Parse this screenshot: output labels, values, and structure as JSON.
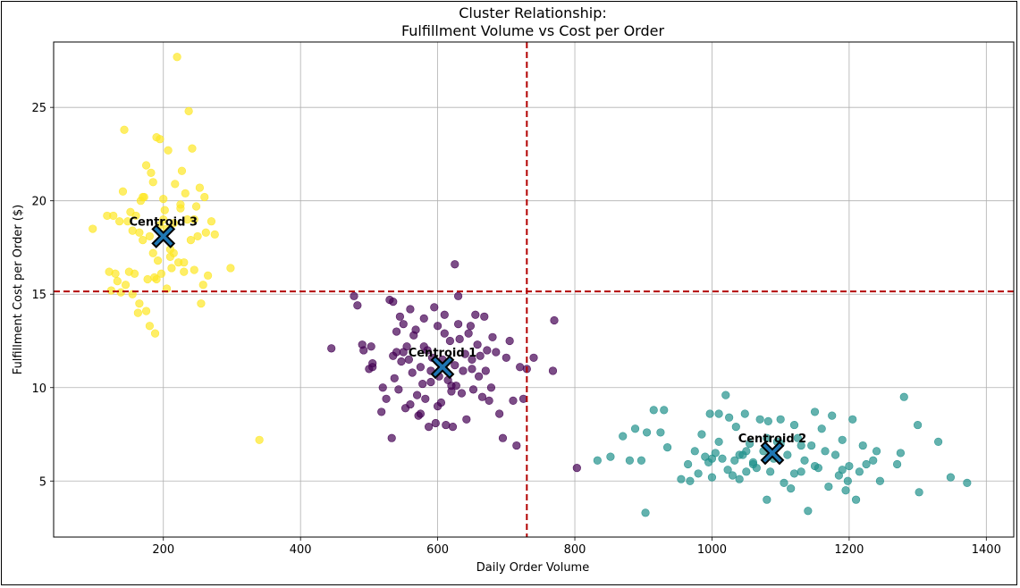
{
  "chart_data": {
    "type": "scatter",
    "title": "Cluster Relationship:",
    "subtitle": "Fulfillment Volume vs Cost per Order",
    "xlabel": "Daily Order Volume",
    "ylabel": "Fulfillment Cost per Order ($)",
    "xlim": [
      40,
      1440
    ],
    "ylim": [
      2,
      28.5
    ],
    "xticks": [
      200,
      400,
      600,
      800,
      1000,
      1200,
      1400
    ],
    "yticks": [
      5,
      10,
      15,
      20,
      25
    ],
    "grid": true,
    "reference_lines": [
      {
        "orientation": "vertical",
        "value": 730,
        "color": "#b30000",
        "style": "dashed"
      },
      {
        "orientation": "horizontal",
        "value": 15.15,
        "color": "#b30000",
        "style": "dashed"
      }
    ],
    "centroids": [
      {
        "label": "Centroid 1",
        "x": 607,
        "y": 11.1
      },
      {
        "label": "Centroid 2",
        "x": 1088,
        "y": 6.5
      },
      {
        "label": "Centroid 3",
        "x": 200,
        "y": 18.1
      }
    ],
    "centroid_color": "#1f77b4",
    "series": [
      {
        "cluster": 1,
        "color": "#440154",
        "x": [
          445,
          478,
          483,
          490,
          492,
          500,
          503,
          505,
          518,
          520,
          525,
          530,
          533,
          535,
          537,
          540,
          543,
          547,
          550,
          553,
          555,
          558,
          560,
          563,
          565,
          568,
          570,
          572,
          575,
          578,
          580,
          582,
          585,
          587,
          590,
          592,
          595,
          597,
          600,
          602,
          605,
          607,
          610,
          612,
          615,
          618,
          620,
          622,
          625,
          627,
          630,
          632,
          635,
          637,
          640,
          642,
          645,
          648,
          650,
          652,
          655,
          658,
          660,
          662,
          665,
          668,
          670,
          672,
          675,
          678,
          680,
          685,
          690,
          695,
          700,
          705,
          710,
          715,
          720,
          725,
          730,
          740,
          768,
          770,
          803,
          625,
          560,
          540,
          580,
          630,
          590,
          545,
          600,
          575,
          650,
          610,
          620,
          550,
          535,
          505
        ],
        "y": [
          12.1,
          14.9,
          14.4,
          12.3,
          12.0,
          11.0,
          12.2,
          11.3,
          8.7,
          10.0,
          9.4,
          14.7,
          7.3,
          11.7,
          10.5,
          11.9,
          9.9,
          11.4,
          13.4,
          8.9,
          12.2,
          11.5,
          9.1,
          10.8,
          12.8,
          13.1,
          9.6,
          8.5,
          11.1,
          10.2,
          13.7,
          9.4,
          12.0,
          7.9,
          10.9,
          11.6,
          14.3,
          8.1,
          13.3,
          10.6,
          9.2,
          11.5,
          13.9,
          8.0,
          10.4,
          12.5,
          9.8,
          7.9,
          11.2,
          10.1,
          14.9,
          12.6,
          9.7,
          10.9,
          11.8,
          8.3,
          12.9,
          13.3,
          11.0,
          9.9,
          13.9,
          12.3,
          10.6,
          11.7,
          9.5,
          13.8,
          10.9,
          12.0,
          9.3,
          10.0,
          12.7,
          11.9,
          8.6,
          7.3,
          11.6,
          12.5,
          9.3,
          6.9,
          11.1,
          9.4,
          11.0,
          11.6,
          10.9,
          13.6,
          5.7,
          16.6,
          14.2,
          13.0,
          12.2,
          13.4,
          10.3,
          13.8,
          9.0,
          8.6,
          11.5,
          12.9,
          10.1,
          11.9,
          14.6,
          11.1
        ]
      },
      {
        "cluster": 2,
        "color": "#21918c",
        "x": [
          833,
          852,
          870,
          880,
          888,
          897,
          903,
          905,
          915,
          925,
          930,
          935,
          955,
          965,
          968,
          975,
          980,
          985,
          990,
          995,
          997,
          1000,
          1005,
          1010,
          1015,
          1020,
          1023,
          1025,
          1030,
          1033,
          1035,
          1040,
          1045,
          1048,
          1050,
          1055,
          1060,
          1065,
          1070,
          1075,
          1080,
          1082,
          1085,
          1090,
          1095,
          1100,
          1105,
          1110,
          1115,
          1120,
          1125,
          1130,
          1135,
          1140,
          1145,
          1150,
          1155,
          1160,
          1165,
          1170,
          1175,
          1180,
          1185,
          1190,
          1195,
          1198,
          1200,
          1205,
          1210,
          1215,
          1220,
          1225,
          1235,
          1240,
          1245,
          1270,
          1275,
          1280,
          1300,
          1302,
          1330,
          1348,
          1372,
          1040,
          1060,
          1120,
          1000,
          1080,
          1150,
          1010,
          1130,
          1190,
          1050,
          1100
        ],
        "y": [
          6.1,
          6.3,
          7.4,
          6.1,
          7.8,
          6.1,
          3.3,
          7.6,
          8.8,
          7.6,
          8.8,
          6.8,
          5.1,
          5.9,
          5.0,
          6.6,
          5.4,
          7.5,
          6.3,
          6.0,
          8.6,
          5.2,
          6.5,
          7.1,
          6.2,
          9.6,
          5.6,
          8.4,
          5.3,
          6.1,
          7.9,
          5.1,
          6.4,
          8.6,
          6.6,
          7.0,
          5.9,
          5.7,
          8.3,
          6.6,
          4.0,
          8.2,
          5.5,
          6.2,
          7.1,
          8.3,
          4.9,
          6.4,
          4.6,
          8.0,
          7.3,
          5.5,
          6.1,
          3.4,
          6.9,
          8.7,
          5.7,
          7.8,
          6.6,
          4.7,
          8.5,
          6.4,
          5.3,
          7.2,
          4.5,
          5.0,
          5.8,
          8.3,
          4.0,
          5.5,
          6.9,
          5.9,
          6.1,
          6.6,
          5.0,
          5.9,
          6.5,
          9.5,
          8.0,
          4.4,
          7.1,
          5.2,
          4.9,
          6.4,
          6.0,
          5.4,
          6.2,
          7.3,
          5.8,
          8.6,
          6.9,
          5.6,
          5.5,
          7.0
        ]
      },
      {
        "cluster": 3,
        "color": "#fde725",
        "x": [
          97,
          118,
          121,
          124,
          127,
          130,
          133,
          136,
          138,
          141,
          143,
          145,
          148,
          150,
          152,
          155,
          158,
          160,
          163,
          165,
          167,
          170,
          172,
          175,
          177,
          180,
          182,
          185,
          187,
          190,
          192,
          195,
          197,
          200,
          202,
          205,
          207,
          210,
          212,
          215,
          217,
          220,
          222,
          225,
          227,
          230,
          232,
          235,
          237,
          240,
          242,
          245,
          248,
          250,
          253,
          255,
          258,
          260,
          262,
          265,
          270,
          275,
          298,
          340,
          185,
          195,
          175,
          205,
          215,
          190,
          165,
          225,
          180,
          210,
          200,
          155,
          230,
          245,
          170,
          188
        ],
        "y": [
          18.5,
          19.2,
          16.2,
          15.2,
          19.2,
          16.1,
          15.7,
          18.9,
          15.1,
          20.5,
          23.8,
          15.5,
          18.9,
          16.2,
          19.4,
          15.0,
          16.1,
          19.2,
          14.0,
          14.5,
          20.0,
          17.9,
          20.2,
          21.9,
          15.8,
          13.3,
          21.5,
          17.2,
          15.9,
          23.4,
          16.8,
          18.7,
          16.1,
          20.1,
          19.5,
          15.3,
          22.7,
          17.4,
          16.4,
          18.8,
          20.9,
          27.7,
          16.7,
          19.6,
          21.6,
          16.2,
          20.4,
          19.0,
          24.8,
          17.9,
          22.8,
          16.3,
          19.7,
          18.1,
          20.7,
          14.5,
          15.5,
          20.2,
          18.3,
          16.0,
          18.9,
          18.2,
          16.4,
          7.2,
          21.0,
          23.3,
          14.1,
          18.5,
          17.2,
          15.8,
          18.3,
          19.8,
          18.1,
          17.0,
          19.0,
          18.4,
          16.7,
          19.0,
          20.2,
          12.9
        ]
      }
    ]
  }
}
